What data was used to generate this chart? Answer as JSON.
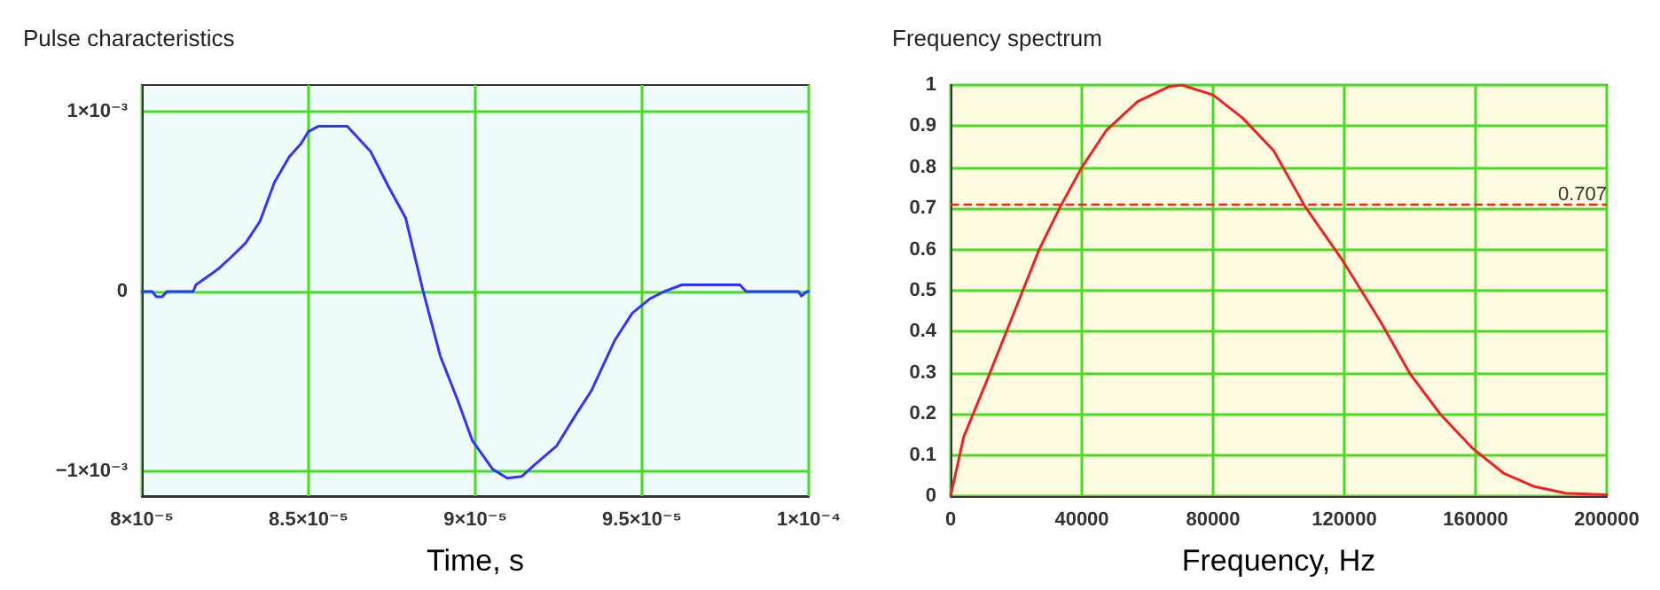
{
  "chart_data": [
    {
      "type": "line",
      "title": "Pulse characteristics",
      "xlabel": "Time, s",
      "grid": true,
      "x": [
        8e-05,
        8.031e-05,
        8.044e-05,
        8.061e-05,
        8.075e-05,
        8.154e-05,
        8.162e-05,
        8.197e-05,
        8.232e-05,
        8.267e-05,
        8.311e-05,
        8.354e-05,
        8.398e-05,
        8.442e-05,
        8.476e-05,
        8.499e-05,
        8.529e-05,
        8.616e-05,
        8.651e-05,
        8.686e-05,
        8.738e-05,
        8.791e-05,
        8.843e-05,
        8.895e-05,
        8.948e-05,
        8.991e-05,
        9.052e-05,
        9.096e-05,
        9.14e-05,
        9.175e-05,
        9.244e-05,
        9.297e-05,
        9.349e-05,
        9.419e-05,
        9.471e-05,
        9.524e-05,
        9.567e-05,
        9.62e-05,
        9.794e-05,
        9.812e-05,
        9.969e-05,
        9.978e-05,
        9.995e-05,
        0.0001
      ],
      "series": [
        {
          "color": "#3333ff",
          "values": [
            0,
            0,
            -3e-05,
            -3e-05,
            0,
            0,
            3.7e-05,
            8.3e-05,
            0.00013,
            0.00019,
            0.00027,
            0.00039,
            0.00061,
            0.00075,
            0.00082,
            0.00089,
            0.00092,
            0.00092,
            0.00085,
            0.00078,
            0.00059,
            0.00041,
            6e-06,
            -0.00036,
            -0.00061,
            -0.00083,
            -0.00099,
            -0.00104,
            -0.00103,
            -0.00097,
            -0.00086,
            -0.0007,
            -0.00055,
            -0.00027,
            -0.00012,
            -4e-05,
            0,
            3.7e-05,
            3.7e-05,
            0,
            0,
            -2.5e-05,
            0,
            0
          ]
        }
      ],
      "xlim": [
        8e-05,
        0.0001
      ],
      "xticks": [
        {
          "value": 8e-05,
          "label": "8×10⁻⁵"
        },
        {
          "value": 8.5e-05,
          "label": "8.5×10⁻⁵"
        },
        {
          "value": 9e-05,
          "label": "9×10⁻⁵"
        },
        {
          "value": 9.5e-05,
          "label": "9.5×10⁻⁵"
        },
        {
          "value": 0.0001,
          "label": "1×10⁻⁴"
        }
      ],
      "ylim": [
        -0.00114,
        0.00115
      ],
      "yticks": [
        {
          "value": -0.001,
          "label": "−1×10⁻³"
        },
        0,
        {
          "value": 0.001,
          "label": "1×10⁻³"
        }
      ]
    },
    {
      "type": "line",
      "title": "Frequency spectrum",
      "xlabel": "Frequency, Hz",
      "grid": true,
      "x": [
        0,
        4000,
        11000,
        19500,
        27000,
        33500,
        40000,
        47500,
        57000,
        66500,
        70500,
        80000,
        89000,
        98500,
        108000,
        119500,
        131000,
        140000,
        149500,
        159000,
        168500,
        178000,
        187500,
        200000
      ],
      "series": [
        {
          "color": "#ee2222",
          "values": [
            0,
            0.144,
            0.28,
            0.45,
            0.6,
            0.705,
            0.8,
            0.89,
            0.96,
            0.996,
            1.0,
            0.976,
            0.92,
            0.84,
            0.705,
            0.573,
            0.425,
            0.298,
            0.197,
            0.117,
            0.056,
            0.023,
            0.007,
            0.003
          ]
        }
      ],
      "xlim": [
        0,
        200000
      ],
      "xticks": [
        0,
        40000,
        80000,
        120000,
        160000,
        200000
      ],
      "ylim": [
        0,
        1
      ],
      "yticks": [
        0,
        0.1,
        0.2,
        0.3,
        0.4,
        0.5,
        0.6,
        0.7,
        0.8,
        0.9,
        1
      ],
      "ref_lines": [
        {
          "axis": "y",
          "value": 0.707,
          "label": "0.707",
          "color": "#ee2222",
          "line_style": "dashed"
        }
      ]
    }
  ]
}
